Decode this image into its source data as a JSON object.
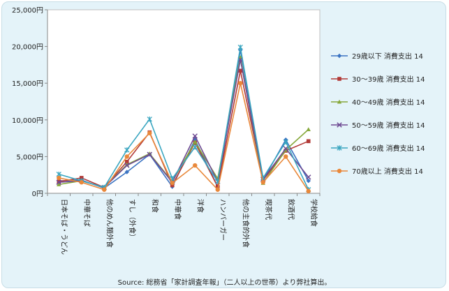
{
  "chart_data": {
    "type": "line",
    "title": "",
    "xlabel": "",
    "ylabel": "",
    "categories": [
      "日本そば・うどん",
      "中華そば",
      "他のめん類外食",
      "すし（外食）",
      "和食",
      "中華食",
      "洋食",
      "ハンバーガー",
      "他の主食的外食",
      "喫茶代",
      "飲酒代",
      "学校給食"
    ],
    "ylim": [
      0,
      25000
    ],
    "y_ticks": [
      "0円",
      "5,000円",
      "10,000円",
      "15,000円",
      "20,000円",
      "25,000円"
    ],
    "grid": false,
    "legend_position": "right",
    "series": [
      {
        "name": "29歳以下 消費支出 14",
        "color": "#3a73c2",
        "marker": "diamond",
        "values": [
          1700,
          1800,
          700,
          2900,
          5300,
          900,
          7300,
          900,
          19500,
          1800,
          7300,
          1700
        ]
      },
      {
        "name": "30～39歳 消費支出 14",
        "color": "#b23a37",
        "marker": "square",
        "values": [
          1600,
          2100,
          800,
          4300,
          8300,
          1100,
          6900,
          900,
          16700,
          1800,
          5800,
          7100
        ]
      },
      {
        "name": "40～49歳 消費支出 14",
        "color": "#86a83b",
        "marker": "triangle",
        "values": [
          1200,
          1700,
          800,
          3900,
          5400,
          1600,
          7000,
          2000,
          18500,
          1400,
          5900,
          8700
        ]
      },
      {
        "name": "50～59歳 消費支出 14",
        "color": "#6e4a93",
        "marker": "x",
        "values": [
          1500,
          1700,
          800,
          3800,
          5300,
          1500,
          7800,
          1600,
          18200,
          1900,
          6100,
          2200
        ]
      },
      {
        "name": "60～69歳 消費支出 14",
        "color": "#3aa6c0",
        "marker": "star",
        "values": [
          2600,
          1700,
          800,
          5900,
          10100,
          2000,
          6300,
          1600,
          19900,
          2100,
          7000,
          500
        ]
      },
      {
        "name": "70歳以上 消費支出 14",
        "color": "#e9883a",
        "marker": "circle",
        "values": [
          2100,
          1500,
          500,
          5000,
          8200,
          1400,
          3800,
          500,
          15000,
          1500,
          5000,
          300
        ]
      }
    ]
  },
  "source_note": "Source: 総務省「家計調査年報」（二人以上の世帯）より弊社算出。"
}
